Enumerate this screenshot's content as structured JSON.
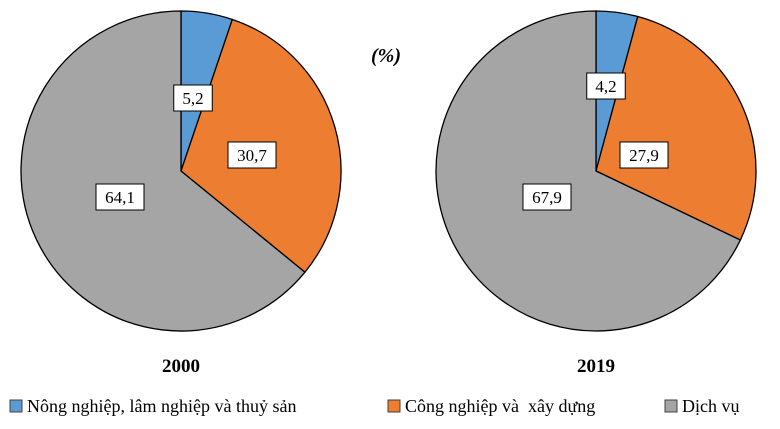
{
  "unit_label": "(%)",
  "chart_data": [
    {
      "type": "pie",
      "year": "2000",
      "categories": [
        "Nông nghiệp, lâm nghiệp và thuỷ sản",
        "Công nghiệp và  xây dựng",
        "Dịch vụ"
      ],
      "values": [
        5.2,
        30.7,
        64.1
      ],
      "value_labels": [
        "5,2",
        "30,7",
        "64,1"
      ],
      "colors": [
        "#5b9bd5",
        "#ed7d31",
        "#a5a5a5"
      ]
    },
    {
      "type": "pie",
      "year": "2019",
      "categories": [
        "Nông nghiệp, lâm nghiệp và thuỷ sản",
        "Công nghiệp và  xây dựng",
        "Dịch vụ"
      ],
      "values": [
        4.2,
        27.9,
        67.9
      ],
      "value_labels": [
        "4,2",
        "27,9",
        "67,9"
      ],
      "colors": [
        "#5b9bd5",
        "#ed7d31",
        "#a5a5a5"
      ]
    }
  ],
  "legend": [
    {
      "label": "Nông nghiệp, lâm nghiệp và thuỷ sản",
      "color": "#5b9bd5"
    },
    {
      "label": "Công nghiệp và  xây dựng",
      "color": "#ed7d31"
    },
    {
      "label": "Dịch vụ",
      "color": "#a5a5a5"
    }
  ]
}
